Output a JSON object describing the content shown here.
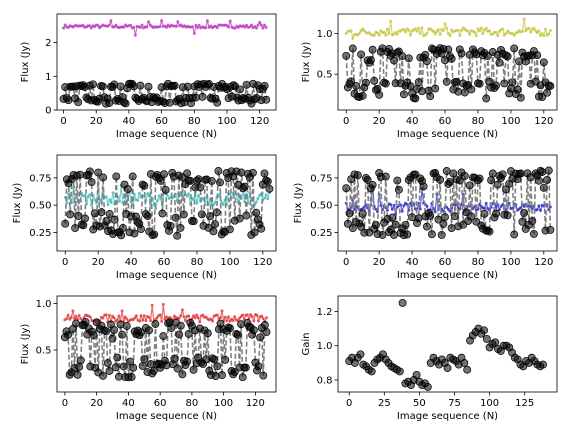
{
  "chart_data": [
    {
      "type": "scatter",
      "xlabel": "Image sequence (N)",
      "ylabel": "Flux (Jy)",
      "xlim": [
        -4,
        130
      ],
      "ylim": [
        0,
        2.85
      ],
      "xticks": [
        0,
        20,
        40,
        60,
        80,
        100,
        120
      ],
      "yticks": [
        0,
        1,
        2
      ],
      "ytick_labels": [
        "0",
        "1",
        "2"
      ],
      "series": [
        {
          "kind": "line-markers",
          "color": "#bf40bf",
          "n": 125,
          "center": 2.48,
          "amp": 0.05,
          "spikes": [
            [
              29,
              2.65
            ],
            [
              52,
              2.62
            ],
            [
              60,
              2.65
            ],
            [
              70,
              2.62
            ],
            [
              88,
              2.65
            ],
            [
              102,
              2.64
            ],
            [
              120,
              2.6
            ],
            [
              44,
              2.22
            ],
            [
              80,
              2.27
            ]
          ]
        },
        {
          "kind": "dashed-circles",
          "color": "#808080",
          "n": 125,
          "top": 0.78,
          "bottom": 0.18
        }
      ]
    },
    {
      "type": "scatter",
      "xlabel": "Image sequence (N)",
      "ylabel": "Flux (Jy)",
      "xlim": [
        -5,
        128
      ],
      "ylim": [
        0.06,
        1.24
      ],
      "xticks": [
        0,
        20,
        40,
        60,
        80,
        100,
        120
      ],
      "yticks": [
        0.5,
        1.0
      ],
      "ytick_labels": [
        "0.5",
        "1.0"
      ],
      "series": [
        {
          "kind": "line-markers",
          "color": "#c8c84a",
          "n": 125,
          "center": 1.02,
          "amp": 0.05,
          "spikes": [
            [
              27,
              1.15
            ],
            [
              108,
              1.18
            ],
            [
              60,
              1.12
            ],
            [
              4,
              0.94
            ]
          ]
        },
        {
          "kind": "dashed-circles",
          "color": "#808080",
          "n": 125,
          "top": 0.82,
          "bottom": 0.2
        }
      ]
    },
    {
      "type": "scatter",
      "xlabel": "Image sequence (N)",
      "ylabel": "Flux (Jy)",
      "xlim": [
        -5,
        128
      ],
      "ylim": [
        0.08,
        0.96
      ],
      "xticks": [
        0,
        20,
        40,
        60,
        80,
        100,
        120
      ],
      "yticks": [
        0.25,
        0.5,
        0.75
      ],
      "ytick_labels": [
        "0.25",
        "0.50",
        "0.75"
      ],
      "series": [
        {
          "kind": "line-markers",
          "color": "#40c0c0",
          "n": 125,
          "center": 0.56,
          "amp": 0.06,
          "spikes": [
            [
              20,
              0.7
            ],
            [
              34,
              0.68
            ],
            [
              5,
              0.66
            ],
            [
              55,
              0.47
            ]
          ]
        },
        {
          "kind": "dashed-circles",
          "color": "#808080",
          "n": 125,
          "top": 0.82,
          "bottom": 0.22
        }
      ]
    },
    {
      "type": "scatter",
      "xlabel": "Image sequence (N)",
      "ylabel": "Flux (Jy)",
      "xlim": [
        -5,
        128
      ],
      "ylim": [
        0.08,
        0.96
      ],
      "xticks": [
        0,
        20,
        40,
        60,
        80,
        100,
        120
      ],
      "yticks": [
        0.25,
        0.5,
        0.75
      ],
      "ytick_labels": [
        "0.25",
        "0.50",
        "0.75"
      ],
      "series": [
        {
          "kind": "line-markers",
          "color": "#3030d0",
          "n": 125,
          "center": 0.48,
          "amp": 0.04,
          "spikes": [
            [
              16,
              0.67
            ],
            [
              20,
              0.6
            ],
            [
              46,
              0.65
            ],
            [
              55,
              0.6
            ],
            [
              4,
              0.55
            ],
            [
              30,
              0.42
            ],
            [
              71,
              0.6
            ]
          ]
        },
        {
          "kind": "dashed-circles",
          "color": "#808080",
          "n": 125,
          "top": 0.82,
          "bottom": 0.22
        }
      ]
    },
    {
      "type": "scatter",
      "xlabel": "Image sequence (N)",
      "ylabel": "Flux (Jy)",
      "xlim": [
        -5,
        133
      ],
      "ylim": [
        0.05,
        1.08
      ],
      "xticks": [
        0,
        20,
        40,
        60,
        80,
        100,
        120
      ],
      "yticks": [
        0.5,
        1.0
      ],
      "ytick_labels": [
        "0.5",
        "1.0"
      ],
      "series": [
        {
          "kind": "line-markers",
          "color": "#e04040",
          "n": 128,
          "center": 0.84,
          "amp": 0.04,
          "spikes": [
            [
              55,
              0.98
            ],
            [
              62,
              0.99
            ],
            [
              5,
              0.92
            ],
            [
              36,
              0.92
            ],
            [
              74,
              0.93
            ],
            [
              99,
              0.92
            ],
            [
              120,
              0.88
            ]
          ]
        },
        {
          "kind": "dashed-circles",
          "color": "#808080",
          "n": 128,
          "top": 0.8,
          "bottom": 0.2
        }
      ]
    },
    {
      "type": "scatter",
      "xlabel": "Image sequence (N)",
      "ylabel": "Gain",
      "xlim": [
        -8,
        148
      ],
      "ylim": [
        0.73,
        1.29
      ],
      "xticks": [
        0,
        25,
        50,
        75,
        100,
        125
      ],
      "yticks": [
        0.8,
        1.0,
        1.2
      ],
      "ytick_labels": [
        "0.8",
        "1.0",
        "1.2"
      ],
      "series": [
        {
          "kind": "circles",
          "color": "#000000",
          "n": 140,
          "points": [
            [
              0,
              0.91
            ],
            [
              2,
              0.93
            ],
            [
              4,
              0.9
            ],
            [
              6,
              0.93
            ],
            [
              8,
              0.95
            ],
            [
              10,
              0.89
            ],
            [
              12,
              0.88
            ],
            [
              14,
              0.86
            ],
            [
              16,
              0.85
            ],
            [
              18,
              0.9
            ],
            [
              20,
              0.92
            ],
            [
              22,
              0.93
            ],
            [
              24,
              0.95
            ],
            [
              26,
              0.92
            ],
            [
              28,
              0.9
            ],
            [
              30,
              0.88
            ],
            [
              32,
              0.87
            ],
            [
              34,
              0.86
            ],
            [
              36,
              0.85
            ],
            [
              38,
              1.25
            ],
            [
              40,
              0.78
            ],
            [
              42,
              0.79
            ],
            [
              44,
              0.77
            ],
            [
              46,
              0.8
            ],
            [
              48,
              0.83
            ],
            [
              50,
              0.79
            ],
            [
              52,
              0.77
            ],
            [
              54,
              0.78
            ],
            [
              56,
              0.76
            ],
            [
              58,
              0.9
            ],
            [
              60,
              0.93
            ],
            [
              62,
              0.91
            ],
            [
              64,
              0.89
            ],
            [
              66,
              0.92
            ],
            [
              68,
              0.9
            ],
            [
              70,
              0.87
            ],
            [
              72,
              0.93
            ],
            [
              74,
              0.92
            ],
            [
              76,
              0.91
            ],
            [
              78,
              0.89
            ],
            [
              80,
              0.93
            ],
            [
              82,
              0.9
            ],
            [
              84,
              0.86
            ],
            [
              86,
              1.03
            ],
            [
              88,
              1.06
            ],
            [
              90,
              1.08
            ],
            [
              92,
              1.1
            ],
            [
              94,
              1.07
            ],
            [
              96,
              1.09
            ],
            [
              98,
              1.04
            ],
            [
              100,
              0.99
            ],
            [
              102,
              1.01
            ],
            [
              104,
              1.02
            ],
            [
              106,
              0.98
            ],
            [
              108,
              0.97
            ],
            [
              110,
              1.0
            ],
            [
              112,
              1.0
            ],
            [
              114,
              0.99
            ],
            [
              116,
              0.96
            ],
            [
              118,
              0.93
            ],
            [
              120,
              0.92
            ],
            [
              122,
              0.89
            ],
            [
              124,
              0.88
            ],
            [
              126,
              0.91
            ],
            [
              128,
              0.9
            ],
            [
              130,
              0.93
            ],
            [
              132,
              0.91
            ],
            [
              134,
              0.89
            ],
            [
              136,
              0.88
            ],
            [
              138,
              0.89
            ]
          ]
        }
      ]
    }
  ]
}
